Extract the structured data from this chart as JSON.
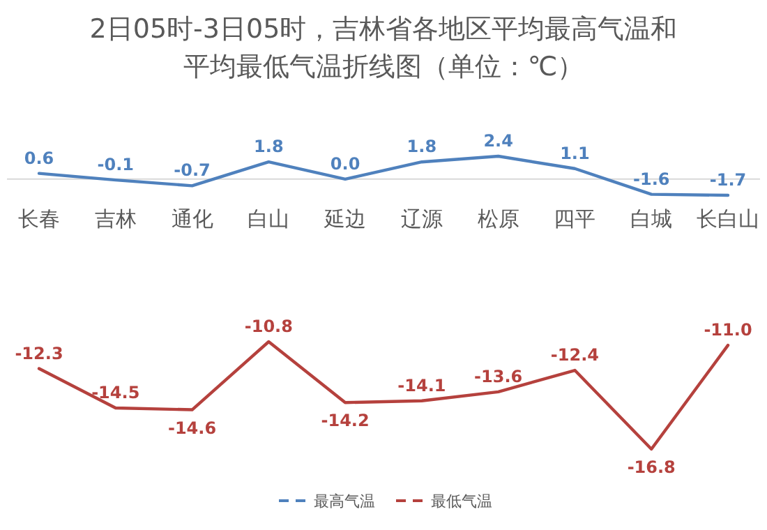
{
  "chart_data": [
    {
      "type": "line",
      "title": "2日05时-3日05时，吉林省各地区平均最高气温和平均最低气温折线图（单位：℃）",
      "categories": [
        "长春",
        "吉林",
        "通化",
        "白山",
        "延边",
        "辽源",
        "松原",
        "四平",
        "白城",
        "长白山"
      ],
      "series": [
        {
          "name": "最高气温",
          "color": "#4f81bd",
          "values": [
            0.6,
            -0.1,
            -0.7,
            1.8,
            0.0,
            1.8,
            2.4,
            1.1,
            -1.6,
            -1.7
          ],
          "value_labels": [
            "0.6",
            "-0.1",
            "-0.7",
            "1.8",
            "0.0",
            "1.8",
            "2.4",
            "1.1",
            "-1.6",
            "-1.7"
          ]
        }
      ],
      "legend": "bottom"
    },
    {
      "type": "line",
      "categories": [
        null,
        null,
        null,
        null,
        null,
        null,
        null,
        null,
        null,
        null
      ],
      "series": [
        {
          "name": "最低气温",
          "color": "#b5413d",
          "values": [
            -12.3,
            -14.5,
            -14.6,
            -10.8,
            -14.2,
            -14.1,
            -13.6,
            -12.4,
            -16.8,
            -11.0
          ],
          "value_labels": [
            "-12.3",
            "-14.5",
            "-14.6",
            "-10.8",
            "-14.2",
            "-14.1",
            "-13.6",
            "-12.4",
            "-16.8",
            "-11.0"
          ]
        }
      ],
      "legend": "bottom"
    }
  ]
}
